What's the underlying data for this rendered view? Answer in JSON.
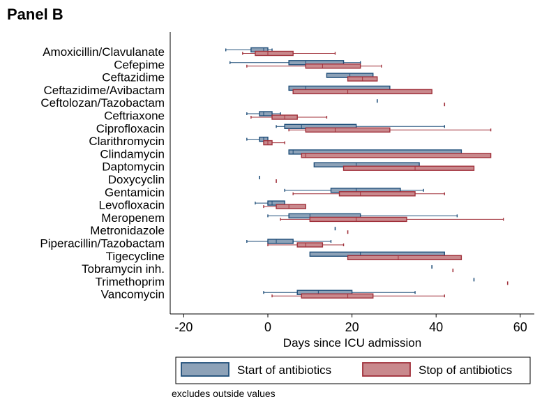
{
  "panel_title": "Panel B",
  "note": "excludes outside values",
  "colors": {
    "start_fill": "#8da2b8",
    "start_stroke": "#1f4e79",
    "stop_fill": "#c9898d",
    "stop_stroke": "#a0303a"
  },
  "chart_data": {
    "type": "horizontal-boxplot",
    "xlabel": "Days since ICU admission",
    "xlim": [
      -25,
      62
    ],
    "xticks": [
      -20,
      0,
      20,
      40,
      60
    ],
    "grid": false,
    "legend": {
      "placement": "bottom",
      "entries": [
        "Start of antibiotics",
        "Stop of antibiotics"
      ]
    },
    "categories": [
      "Amoxicillin/Clavulanate",
      "Cefepime",
      "Ceftazidime",
      "Ceftazidime/Avibactam",
      "Ceftolozan/Tazobactam",
      "Ceftriaxone",
      "Ciprofloxacin",
      "Clarithromycin",
      "Clindamycin",
      "Daptomycin",
      "Doxycyclin",
      "Gentamicin",
      "Levofloxacin",
      "Meropenem",
      "Metronidazole",
      "Piperacillin/Tazobactam",
      "Tigecycline",
      "Tobramycin inh.",
      "Trimethoprim",
      "Vancomycin"
    ],
    "series": [
      {
        "name": "Start of antibiotics",
        "boxes": [
          {
            "min": -10,
            "q1": -4,
            "median": -1,
            "q3": 0,
            "max": 1
          },
          {
            "min": -9,
            "q1": 5,
            "median": 9,
            "q3": 18,
            "max": 22
          },
          {
            "min": 14,
            "q1": 14,
            "median": 19.5,
            "q3": 25,
            "max": 25
          },
          {
            "min": 5,
            "q1": 5,
            "median": 9,
            "q3": 29,
            "max": 29
          },
          {
            "min": 26,
            "q1": 26,
            "median": 26,
            "q3": 26,
            "max": 26
          },
          {
            "min": -5,
            "q1": -2,
            "median": -1,
            "q3": 1,
            "max": 3
          },
          {
            "min": 2,
            "q1": 4,
            "median": 8,
            "q3": 21,
            "max": 42
          },
          {
            "min": -5,
            "q1": -2,
            "median": -1,
            "q3": 0,
            "max": 0
          },
          {
            "min": 5,
            "q1": 5,
            "median": 6,
            "q3": 46,
            "max": 46
          },
          {
            "min": 11,
            "q1": 11,
            "median": 21,
            "q3": 36,
            "max": 36
          },
          {
            "min": -2,
            "q1": -2,
            "median": -2,
            "q3": -2,
            "max": -2
          },
          {
            "min": 4,
            "q1": 15,
            "median": 21,
            "q3": 31.5,
            "max": 37
          },
          {
            "min": -3,
            "q1": 0,
            "median": 1,
            "q3": 4,
            "max": 4
          },
          {
            "min": 0,
            "q1": 5,
            "median": 10,
            "q3": 22,
            "max": 45
          },
          {
            "min": 16,
            "q1": 16,
            "median": 16,
            "q3": 16,
            "max": 16
          },
          {
            "min": -5,
            "q1": 0,
            "median": 2,
            "q3": 6,
            "max": 15
          },
          {
            "min": 10,
            "q1": 10,
            "median": 22,
            "q3": 42,
            "max": 42
          },
          {
            "min": 39,
            "q1": 39,
            "median": 39,
            "q3": 39,
            "max": 39
          },
          {
            "min": 49,
            "q1": 49,
            "median": 49,
            "q3": 49,
            "max": 49
          },
          {
            "min": -1,
            "q1": 7,
            "median": 12,
            "q3": 20,
            "max": 35
          }
        ]
      },
      {
        "name": "Stop of antibiotics",
        "boxes": [
          {
            "min": -6,
            "q1": -3,
            "median": 0,
            "q3": 6,
            "max": 16
          },
          {
            "min": -5,
            "q1": 9,
            "median": 13,
            "q3": 22,
            "max": 27
          },
          {
            "min": 19,
            "q1": 19,
            "median": 22.5,
            "q3": 26,
            "max": 26
          },
          {
            "min": 6,
            "q1": 6,
            "median": 19,
            "q3": 39,
            "max": 39
          },
          {
            "min": 42,
            "q1": 42,
            "median": 42,
            "q3": 42,
            "max": 42
          },
          {
            "min": -4,
            "q1": 1,
            "median": 4,
            "q3": 7,
            "max": 14
          },
          {
            "min": 5,
            "q1": 9,
            "median": 16,
            "q3": 29,
            "max": 53
          },
          {
            "min": -1,
            "q1": -1,
            "median": 0,
            "q3": 1,
            "max": 4
          },
          {
            "min": 8,
            "q1": 8,
            "median": 9,
            "q3": 53,
            "max": 53
          },
          {
            "min": 18,
            "q1": 18,
            "median": 35,
            "q3": 49,
            "max": 49
          },
          {
            "min": 2,
            "q1": 2,
            "median": 2,
            "q3": 2,
            "max": 2
          },
          {
            "min": 6,
            "q1": 17,
            "median": 22,
            "q3": 35,
            "max": 42
          },
          {
            "min": -1,
            "q1": 2,
            "median": 5,
            "q3": 9,
            "max": 9
          },
          {
            "min": 3,
            "q1": 10,
            "median": 21,
            "q3": 33,
            "max": 56
          },
          {
            "min": 19,
            "q1": 19,
            "median": 19,
            "q3": 19,
            "max": 19
          },
          {
            "min": 0,
            "q1": 7,
            "median": 9,
            "q3": 13,
            "max": 18
          },
          {
            "min": 19,
            "q1": 19,
            "median": 31,
            "q3": 46,
            "max": 46
          },
          {
            "min": 44,
            "q1": 44,
            "median": 44,
            "q3": 44,
            "max": 44
          },
          {
            "min": 57,
            "q1": 57,
            "median": 57,
            "q3": 57,
            "max": 57
          },
          {
            "min": 1,
            "q1": 8,
            "median": 19,
            "q3": 25,
            "max": 42
          }
        ]
      }
    ]
  }
}
